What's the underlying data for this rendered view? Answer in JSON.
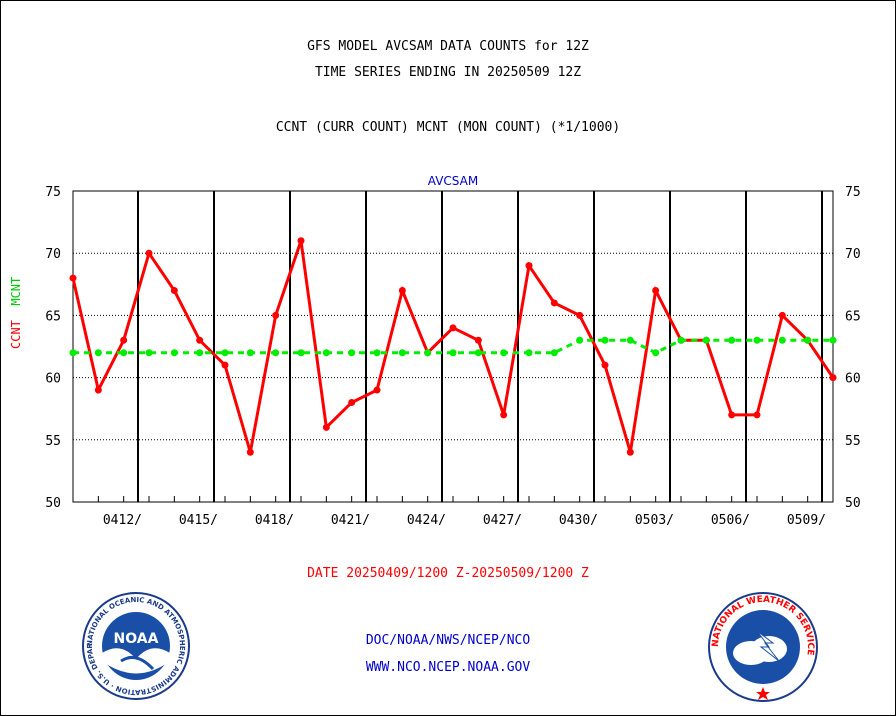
{
  "titles": {
    "line1": "GFS MODEL AVCSAM DATA COUNTS for 12Z",
    "line2": "TIME SERIES ENDING IN 20250509 12Z",
    "line3": "CCNT (CURR COUNT) MCNT (MON COUNT) (*1/1000)"
  },
  "ylabel": {
    "ccnt": "CCNT",
    "mcnt": "MCNT"
  },
  "date_label": "DATE 20250409/1200 Z-20250509/1200 Z",
  "footer": {
    "line1": "DOC/NOAA/NWS/NCEP/NCO",
    "line2": "WWW.NCO.NCEP.NOAA.GOV"
  },
  "logos": {
    "noaa": {
      "center_text": "NOAA",
      "ring_text": "NATIONAL OCEANIC AND ATMOSPHERIC ADMINISTRATION · U.S. DEPARTMENT OF COMMERCE"
    },
    "nws": {
      "ring_text": "NATIONAL WEATHER SERVICE"
    }
  },
  "colors": {
    "ccnt": "#ff0000",
    "mcnt": "#00ee00",
    "footer": "#0000cc",
    "label": "#0000cc"
  },
  "chart_data": {
    "type": "line",
    "title": "AVCSAM",
    "xlabel": "",
    "ylabel": "CCNT MCNT",
    "ylim": [
      50,
      75
    ],
    "yticks": [
      50,
      55,
      60,
      65,
      70,
      75
    ],
    "x_start_day": "2025-04-09",
    "x_tick_days": [
      3,
      6,
      9,
      12,
      15,
      18,
      21,
      24,
      27,
      30
    ],
    "x_tick_labels": [
      "0412/",
      "0415/",
      "0418/",
      "0421/",
      "0424/",
      "0427/",
      "0430/",
      "0503/",
      "0506/",
      "0509/"
    ],
    "grid": true,
    "series": [
      {
        "name": "CCNT",
        "color": "#ff0000",
        "values": [
          68,
          59,
          63,
          70,
          67,
          63,
          61,
          54,
          65,
          71,
          56,
          58,
          59,
          67,
          62,
          64,
          63,
          57,
          69,
          66,
          65,
          61,
          54,
          67,
          63,
          63,
          57,
          57,
          65,
          63,
          60
        ]
      },
      {
        "name": "MCNT",
        "color": "#00ee00",
        "values": [
          62,
          62,
          62,
          62,
          62,
          62,
          62,
          62,
          62,
          62,
          62,
          62,
          62,
          62,
          62,
          62,
          62,
          62,
          62,
          62,
          63,
          63,
          63,
          62,
          63,
          63,
          63,
          63,
          63,
          63,
          63
        ]
      }
    ]
  }
}
